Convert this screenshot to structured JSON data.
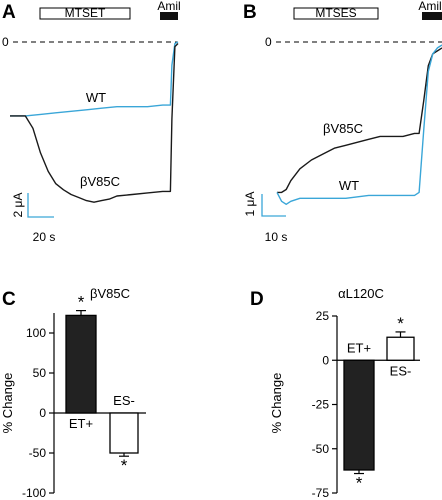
{
  "figure": {
    "panels": {
      "A": {
        "letter": "A",
        "treatment": "MTSET",
        "amiloride": "Amil",
        "zero": "0",
        "wt_label": "WT",
        "mutant_label": "βV85C",
        "scale_current": "2 μA",
        "scale_time": "20 s"
      },
      "B": {
        "letter": "B",
        "treatment": "MTSES",
        "amiloride": "Amil",
        "zero": "0",
        "wt_label": "WT",
        "mutant_label": "βV85C",
        "scale_current": "1 μA",
        "scale_time": "10 s"
      },
      "C": {
        "letter": "C",
        "title": "βV85C",
        "ylabel": "% Change",
        "bar_labels": [
          "ET+",
          "ES-"
        ],
        "star": "*"
      },
      "D": {
        "letter": "D",
        "title": "αL120C",
        "ylabel": "% Change",
        "bar_labels": [
          "ET+",
          "ES-"
        ],
        "star": "*"
      }
    },
    "colors": {
      "wt": "#3aa6d8",
      "mutant": "#1a1a1a",
      "filled_bar": "#222222",
      "open_bar": "#ffffff"
    }
  },
  "chart_data": [
    {
      "panel": "A",
      "type": "line",
      "x_unit": "s",
      "y_unit": "μA",
      "series": [
        {
          "name": "WT",
          "x": [
            0,
            10,
            20,
            30,
            40,
            50,
            60,
            70,
            80,
            90,
            100,
            105,
            106,
            108,
            110
          ],
          "y": [
            -4.8,
            -4.8,
            -4.7,
            -4.6,
            -4.5,
            -4.4,
            -4.3,
            -4.2,
            -4.2,
            -4.2,
            -4.1,
            -4.1,
            -1.5,
            -0.1,
            0.0
          ]
        },
        {
          "name": "βV85C",
          "x": [
            0,
            10,
            15,
            20,
            25,
            30,
            35,
            40,
            45,
            50,
            55,
            60,
            65,
            70,
            80,
            90,
            100,
            105,
            106,
            108,
            110
          ],
          "y": [
            -4.8,
            -4.8,
            -5.6,
            -7.2,
            -8.4,
            -9.2,
            -9.6,
            -9.9,
            -10.1,
            -10.3,
            -10.4,
            -10.3,
            -10.2,
            -10.0,
            -9.9,
            -9.8,
            -9.7,
            -9.7,
            -5.0,
            -0.3,
            -0.1
          ]
        }
      ],
      "annotations": [
        {
          "label": "MTSET",
          "x_range": [
            10,
            62
          ]
        },
        {
          "label": "Amil",
          "x_range": [
            100,
            110
          ]
        }
      ]
    },
    {
      "panel": "B",
      "type": "line",
      "x_unit": "s",
      "y_unit": "μA",
      "series": [
        {
          "name": "βV85C",
          "x": [
            0,
            2,
            4,
            6,
            10,
            15,
            20,
            25,
            30,
            35,
            40,
            45,
            50,
            55,
            60,
            62,
            64,
            66,
            68,
            70,
            72
          ],
          "y": [
            -5.1,
            -5.1,
            -5.0,
            -4.7,
            -4.3,
            -4.0,
            -3.8,
            -3.6,
            -3.5,
            -3.4,
            -3.3,
            -3.2,
            -3.2,
            -3.2,
            -3.1,
            -3.1,
            -2.0,
            -0.8,
            -0.4,
            -0.3,
            -0.2
          ]
        },
        {
          "name": "WT",
          "x": [
            0,
            2,
            4,
            6,
            10,
            20,
            30,
            40,
            50,
            60,
            62,
            64,
            66,
            68,
            70,
            72
          ],
          "y": [
            -5.1,
            -5.4,
            -5.5,
            -5.4,
            -5.3,
            -5.3,
            -5.3,
            -5.2,
            -5.2,
            -5.2,
            -5.1,
            -3.0,
            -1.0,
            -0.4,
            -0.2,
            -0.1
          ]
        }
      ],
      "annotations": [
        {
          "label": "MTSES",
          "x_range": [
            6,
            38
          ]
        },
        {
          "label": "Amil",
          "x_range": [
            64,
            72
          ]
        }
      ]
    },
    {
      "panel": "C",
      "type": "bar",
      "title": "βV85C",
      "ylabel": "% Change",
      "categories": [
        "ET+",
        "ES-"
      ],
      "values": [
        122,
        -50
      ],
      "errors": [
        6,
        4
      ],
      "ylim": [
        -100,
        125
      ],
      "yticks": [
        -100,
        -50,
        0,
        50,
        100
      ]
    },
    {
      "panel": "D",
      "type": "bar",
      "title": "αL120C",
      "ylabel": "% Change",
      "categories": [
        "ET+",
        "ES-"
      ],
      "values": [
        -62,
        13
      ],
      "errors": [
        2,
        3
      ],
      "ylim": [
        -75,
        25
      ],
      "yticks": [
        -75,
        -50,
        -25,
        0,
        25
      ]
    }
  ]
}
